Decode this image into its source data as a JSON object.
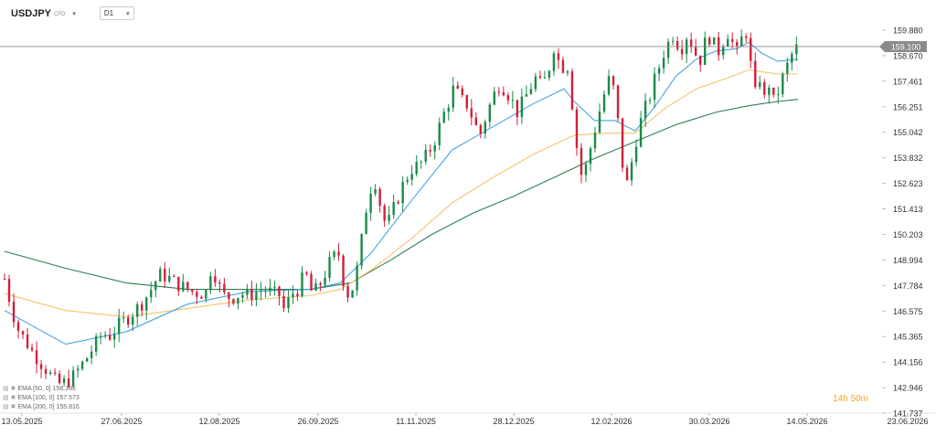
{
  "header": {
    "symbol": "USDJPY",
    "symbol_type": "CFD",
    "symbol_caret": "▾",
    "timeframe": "D1",
    "timeframe_caret": "▾"
  },
  "countdown": "14h 50m",
  "legend": [
    {
      "label": "EMA [50, 0] 158.195",
      "color": "#4aa3df"
    },
    {
      "label": "EMA [100, 0] 157.573",
      "color": "#f5c36b"
    },
    {
      "label": "EMA [200, 0] 155.816",
      "color": "#2e7d4f"
    }
  ],
  "legend_icons": "▤ ✖",
  "colors": {
    "up": "#1a8a4a",
    "down": "#d11f3a",
    "ema50": "#4aa3df",
    "ema100": "#f5c36b",
    "ema200": "#2e7d4f",
    "current_price_line": "#888888",
    "price_tag_bg": "#8a8a8a"
  },
  "chart_data": {
    "type": "candlestick",
    "instrument": "USDJPY",
    "timeframe": "D1",
    "y_axis": {
      "ticks": [
        "159.880",
        "158.670",
        "157.461",
        "156.251",
        "155.042",
        "153.832",
        "152.623",
        "151.413",
        "150.203",
        "148.994",
        "147.784",
        "146.575",
        "145.365",
        "144.156",
        "142.946",
        "141.737"
      ],
      "range": [
        141.737,
        160.7
      ]
    },
    "x_axis": {
      "ticks": [
        "13.05.2025",
        "27.06.2025",
        "12.08.2025",
        "26.09.2025",
        "11.11.2025",
        "28.12.2025",
        "12.02.2026",
        "30.03.2026",
        "14.05.2026",
        "23.06.2026"
      ]
    },
    "current_price": 159.1,
    "current_price_label": "159.100",
    "close_path": [
      [
        0,
        148.1
      ],
      [
        3,
        146.9
      ],
      [
        6,
        145.8
      ],
      [
        10,
        145.2
      ],
      [
        14,
        144.6
      ],
      [
        18,
        144.1
      ],
      [
        22,
        143.6
      ],
      [
        26,
        143.1
      ],
      [
        30,
        143.2
      ],
      [
        34,
        143.5
      ],
      [
        37,
        143.9
      ],
      [
        40,
        144.3
      ],
      [
        44,
        144.9
      ],
      [
        48,
        145.5
      ],
      [
        52,
        145.4
      ],
      [
        56,
        145.9
      ],
      [
        60,
        146.2
      ],
      [
        64,
        146.6
      ],
      [
        68,
        147.0
      ],
      [
        72,
        147.6
      ],
      [
        76,
        148.3
      ],
      [
        80,
        148.2
      ],
      [
        84,
        147.9
      ],
      [
        88,
        147.7
      ],
      [
        92,
        147.5
      ],
      [
        96,
        147.4
      ],
      [
        100,
        147.5
      ],
      [
        102,
        149.1
      ],
      [
        104,
        148.0
      ],
      [
        108,
        147.3
      ],
      [
        112,
        147.2
      ],
      [
        116,
        147.4
      ],
      [
        120,
        147.3
      ],
      [
        124,
        147.5
      ],
      [
        128,
        147.6
      ],
      [
        132,
        147.4
      ],
      [
        136,
        147.3
      ],
      [
        138,
        146.3
      ],
      [
        140,
        147.3
      ],
      [
        144,
        147.6
      ],
      [
        148,
        148.4
      ],
      [
        150,
        147.6
      ],
      [
        152,
        147.4
      ],
      [
        156,
        148.0
      ],
      [
        160,
        148.9
      ],
      [
        164,
        149.4
      ],
      [
        166,
        148.3
      ],
      [
        168,
        147.3
      ],
      [
        172,
        147.8
      ],
      [
        175,
        149.6
      ],
      [
        178,
        151.6
      ],
      [
        180,
        152.4
      ],
      [
        182,
        152.8
      ],
      [
        184,
        151.9
      ],
      [
        186,
        151.0
      ],
      [
        188,
        150.6
      ],
      [
        192,
        151.6
      ],
      [
        196,
        152.6
      ],
      [
        200,
        153.3
      ],
      [
        204,
        153.5
      ],
      [
        208,
        154.0
      ],
      [
        212,
        154.8
      ],
      [
        215,
        155.7
      ],
      [
        218,
        156.4
      ],
      [
        221,
        157.2
      ],
      [
        224,
        156.6
      ],
      [
        228,
        156.3
      ],
      [
        231,
        155.4
      ],
      [
        234,
        155.0
      ],
      [
        237,
        155.9
      ],
      [
        240,
        156.7
      ],
      [
        243,
        157.3
      ],
      [
        246,
        157.1
      ],
      [
        249,
        156.6
      ],
      [
        252,
        156.0
      ],
      [
        255,
        156.5
      ],
      [
        258,
        157.1
      ],
      [
        261,
        157.6
      ],
      [
        264,
        157.2
      ],
      [
        267,
        157.8
      ],
      [
        270,
        159.1
      ],
      [
        272,
        158.5
      ],
      [
        274,
        158.0
      ],
      [
        276,
        158.6
      ],
      [
        278,
        157.5
      ],
      [
        280,
        155.3
      ],
      [
        282,
        153.8
      ],
      [
        284,
        152.8
      ],
      [
        286,
        153.5
      ],
      [
        288,
        154.3
      ],
      [
        290,
        155.1
      ],
      [
        292,
        155.9
      ],
      [
        294,
        156.5
      ],
      [
        296,
        157.4
      ],
      [
        298,
        157.6
      ],
      [
        300,
        156.8
      ],
      [
        302,
        155.1
      ],
      [
        304,
        153.3
      ],
      [
        306,
        152.6
      ],
      [
        308,
        153.5
      ],
      [
        310,
        154.5
      ],
      [
        312,
        155.3
      ],
      [
        314,
        156.0
      ],
      [
        316,
        156.4
      ],
      [
        318,
        157.0
      ],
      [
        320,
        157.7
      ],
      [
        322,
        158.2
      ],
      [
        324,
        158.8
      ],
      [
        326,
        159.2
      ],
      [
        328,
        159.7
      ],
      [
        330,
        159.5
      ],
      [
        332,
        158.9
      ],
      [
        334,
        159.3
      ],
      [
        336,
        159.8
      ],
      [
        338,
        159.1
      ],
      [
        340,
        158.7
      ],
      [
        342,
        158.5
      ],
      [
        344,
        159.2
      ],
      [
        346,
        159.6
      ],
      [
        348,
        159.4
      ],
      [
        350,
        158.8
      ],
      [
        352,
        159.0
      ],
      [
        354,
        159.6
      ],
      [
        356,
        159.8
      ],
      [
        358,
        159.2
      ],
      [
        360,
        158.8
      ],
      [
        362,
        159.4
      ],
      [
        364,
        159.9
      ],
      [
        366,
        159.4
      ],
      [
        368,
        156.3
      ],
      [
        370,
        157.4
      ],
      [
        372,
        157.8
      ],
      [
        374,
        156.2
      ],
      [
        376,
        157.5
      ],
      [
        378,
        156.5
      ],
      [
        380,
        156.9
      ],
      [
        382,
        157.5
      ],
      [
        384,
        158.0
      ],
      [
        386,
        158.5
      ],
      [
        388,
        158.9
      ],
      [
        390,
        159.1
      ]
    ],
    "ema_50": [
      [
        0,
        146.6
      ],
      [
        30,
        145.0
      ],
      [
        60,
        145.6
      ],
      [
        90,
        146.9
      ],
      [
        120,
        147.5
      ],
      [
        150,
        147.6
      ],
      [
        165,
        147.9
      ],
      [
        180,
        149.3
      ],
      [
        200,
        151.8
      ],
      [
        220,
        154.2
      ],
      [
        240,
        155.3
      ],
      [
        260,
        156.4
      ],
      [
        275,
        157.1
      ],
      [
        280,
        156.5
      ],
      [
        290,
        155.6
      ],
      [
        300,
        155.6
      ],
      [
        310,
        155.1
      ],
      [
        320,
        156.3
      ],
      [
        330,
        157.7
      ],
      [
        340,
        158.5
      ],
      [
        350,
        158.9
      ],
      [
        360,
        159.0
      ],
      [
        366,
        159.3
      ],
      [
        372,
        158.8
      ],
      [
        380,
        158.4
      ],
      [
        390,
        158.5
      ]
    ],
    "ema_100": [
      [
        0,
        147.4
      ],
      [
        30,
        146.6
      ],
      [
        60,
        146.3
      ],
      [
        90,
        146.7
      ],
      [
        120,
        147.1
      ],
      [
        150,
        147.3
      ],
      [
        165,
        147.6
      ],
      [
        180,
        148.5
      ],
      [
        200,
        150.0
      ],
      [
        220,
        151.7
      ],
      [
        240,
        152.9
      ],
      [
        260,
        154.0
      ],
      [
        280,
        154.9
      ],
      [
        295,
        155.0
      ],
      [
        310,
        155.0
      ],
      [
        325,
        156.2
      ],
      [
        340,
        157.1
      ],
      [
        355,
        157.6
      ],
      [
        366,
        158.0
      ],
      [
        380,
        157.8
      ],
      [
        390,
        157.8
      ]
    ],
    "ema_200": [
      [
        0,
        149.4
      ],
      [
        30,
        148.6
      ],
      [
        60,
        147.9
      ],
      [
        90,
        147.6
      ],
      [
        120,
        147.6
      ],
      [
        150,
        147.6
      ],
      [
        170,
        147.9
      ],
      [
        190,
        149.0
      ],
      [
        210,
        150.2
      ],
      [
        230,
        151.2
      ],
      [
        250,
        152.0
      ],
      [
        270,
        152.9
      ],
      [
        290,
        153.8
      ],
      [
        310,
        154.6
      ],
      [
        330,
        155.4
      ],
      [
        350,
        156.0
      ],
      [
        366,
        156.3
      ],
      [
        380,
        156.5
      ],
      [
        390,
        156.6
      ]
    ],
    "indicators_legend": [
      "EMA [50, 0] 158.195",
      "EMA [100, 0] 157.573",
      "EMA [200, 0] 155.816"
    ],
    "grid": false
  }
}
